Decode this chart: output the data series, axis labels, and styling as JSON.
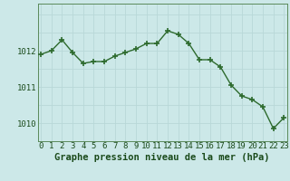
{
  "hours": [
    0,
    1,
    2,
    3,
    4,
    5,
    6,
    7,
    8,
    9,
    10,
    11,
    12,
    13,
    14,
    15,
    16,
    17,
    18,
    19,
    20,
    21,
    22,
    23
  ],
  "pressure": [
    1011.9,
    1012.0,
    1012.3,
    1011.95,
    1011.65,
    1011.7,
    1011.7,
    1011.85,
    1011.95,
    1012.05,
    1012.2,
    1012.2,
    1012.55,
    1012.45,
    1012.2,
    1011.75,
    1011.75,
    1011.55,
    1011.05,
    1010.75,
    1010.65,
    1010.45,
    1009.85,
    1010.15
  ],
  "line_color": "#2d6a2d",
  "marker_color": "#2d6a2d",
  "bg_color": "#cce8e8",
  "grid_color_v": "#b8d8d8",
  "grid_color_h": "#b8d8d8",
  "title": "Graphe pression niveau de la mer (hPa)",
  "label_color": "#1a4a1a",
  "ylim_min": 1009.5,
  "ylim_max": 1013.3,
  "yticks": [
    1010,
    1011,
    1012
  ],
  "xtick_labels": [
    "0",
    "1",
    "2",
    "3",
    "4",
    "5",
    "6",
    "7",
    "8",
    "9",
    "10",
    "11",
    "12",
    "13",
    "14",
    "15",
    "16",
    "17",
    "18",
    "19",
    "20",
    "21",
    "22",
    "23"
  ],
  "title_fontsize": 7.5,
  "tick_fontsize": 6.5
}
